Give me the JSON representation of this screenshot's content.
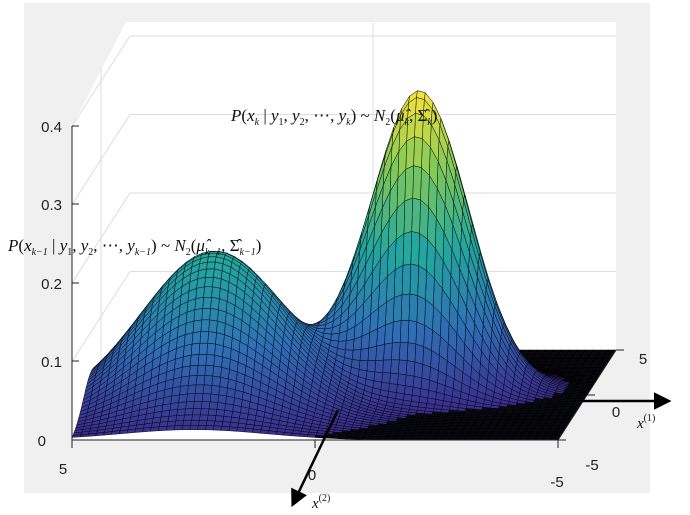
{
  "chart_data": {
    "type": "surface",
    "title": "",
    "z_axis": {
      "ticks": [
        "0",
        "0.1",
        "0.2",
        "0.3",
        "0.4"
      ],
      "range": [
        0,
        0.4
      ]
    },
    "x1_axis": {
      "label": "x",
      "label_sup": "(1)",
      "ticks": [
        "-5",
        "0",
        "5"
      ],
      "range": [
        -5,
        5
      ]
    },
    "x2_axis": {
      "label": "x",
      "label_sup": "(2)",
      "ticks": [
        "5",
        "0",
        "-5"
      ],
      "range": [
        -5,
        5
      ]
    },
    "grid": true,
    "colormap": [
      "#3a2a8c",
      "#2f6fb6",
      "#23a7a0",
      "#7cc85a",
      "#f8e43a"
    ],
    "series": [
      {
        "annotation": "P(x_{k-1} | y_1, y_2, ..., y_{k-1}) ~ N_2(mu_hat_{k-1}, Sigma_hat_{k-1})",
        "peak": 0.2,
        "mean": [
          -1.5,
          2.5
        ],
        "sigma": [
          1.5,
          1.5
        ]
      },
      {
        "annotation": "P(x_k | y_1, y_2, ..., y_k) ~ N_2(mu_hat_k, Sigma_hat_k)",
        "peak": 0.38,
        "mean": [
          0.5,
          -1.5
        ],
        "sigma": [
          0.9,
          1.0
        ]
      }
    ]
  }
}
